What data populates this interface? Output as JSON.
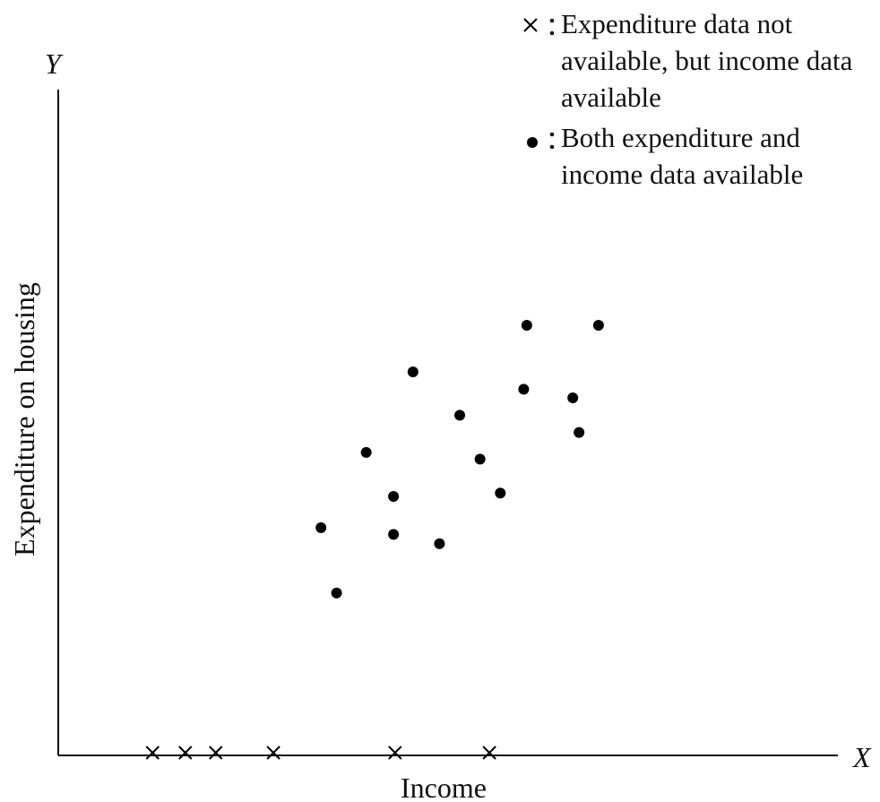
{
  "chart_data": {
    "type": "scatter",
    "xlabel": "Income",
    "ylabel": "Expenditure on housing",
    "x_axis_symbol": "X",
    "y_axis_symbol": "Y",
    "xlim": [
      0,
      100
    ],
    "ylim": [
      0,
      100
    ],
    "grid": false,
    "legend": "upper right",
    "series": [
      {
        "name": "Expenditure data not available, but income data available",
        "color": "#000000",
        "marker": "x",
        "x": [
          12.1,
          16.3,
          20.2,
          27.6,
          43.2,
          55.3
        ],
        "values": [
          0,
          0,
          0,
          0,
          0,
          0
        ]
      },
      {
        "name": "Both expenditure and income data available",
        "color": "#000000",
        "marker": "o",
        "x": [
          60.1,
          69.3,
          45.5,
          59.7,
          66.0,
          51.5,
          66.8,
          39.5,
          54.1,
          43.0,
          56.7,
          33.7,
          43.0,
          48.9,
          35.7
        ],
        "values": [
          64.6,
          64.6,
          57.6,
          55.0,
          53.7,
          51.1,
          48.5,
          45.5,
          44.5,
          38.9,
          39.4,
          34.2,
          33.2,
          31.8,
          24.4
        ]
      }
    ]
  }
}
